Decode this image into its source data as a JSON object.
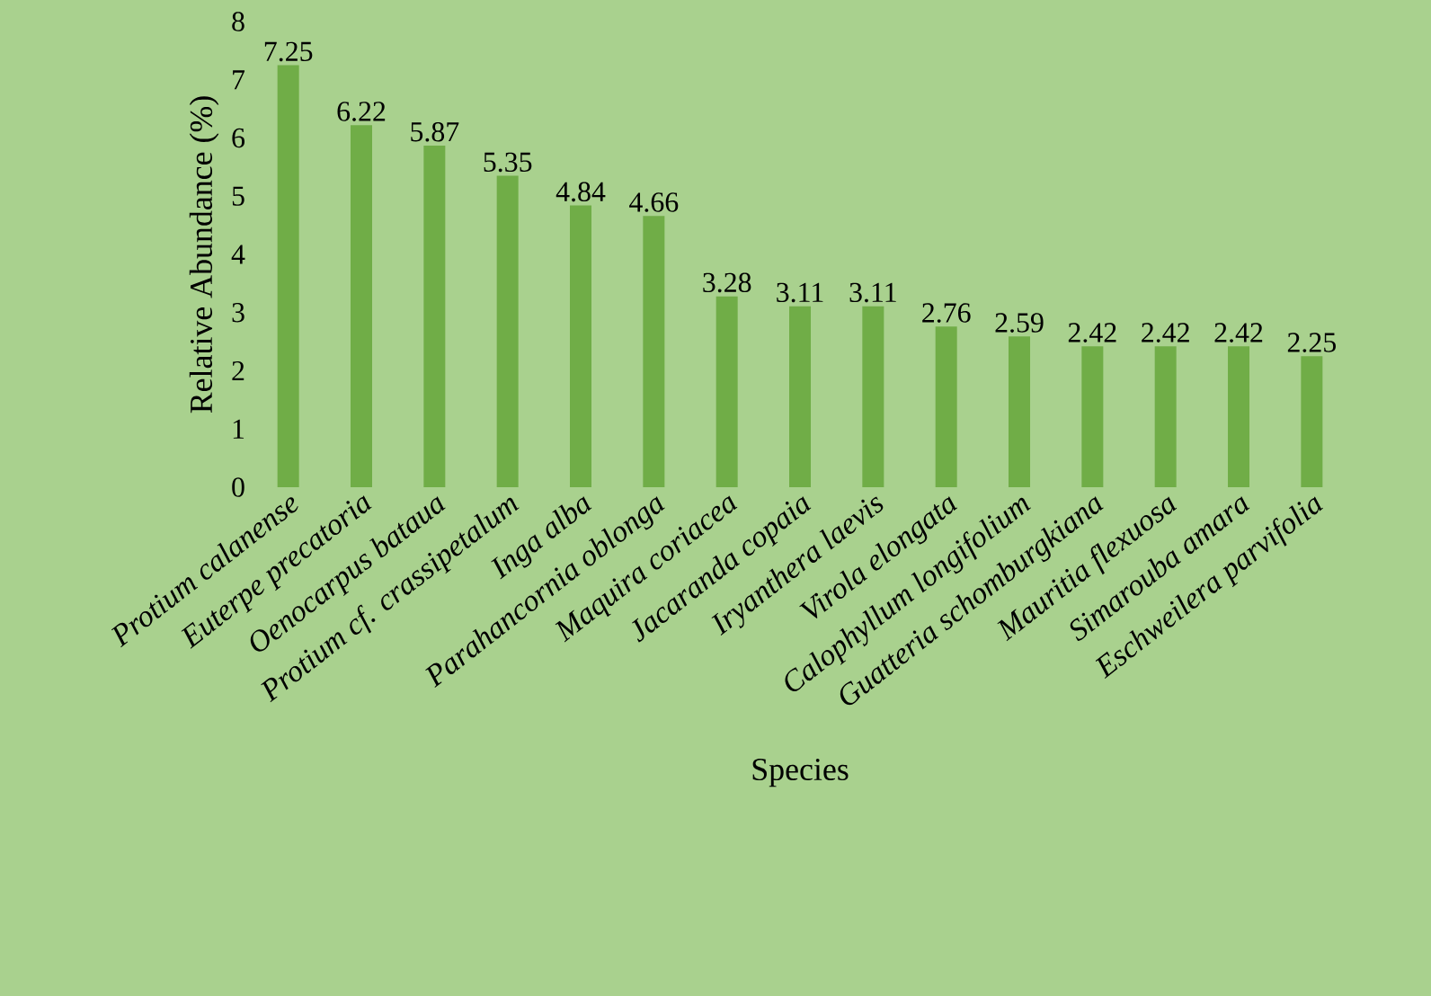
{
  "chart_data": {
    "type": "bar",
    "xlabel": "Species",
    "ylabel": "Relative Abundance (%)",
    "categories": [
      "Protium calanense",
      "Euterpe precatoria",
      "Oenocarpus bataua",
      "Protium cf. crassipetalum",
      "Inga alba",
      "Parahancornia oblonga",
      "Maquira coriacea",
      "Jacaranda copaia",
      "Iryanthera laevis",
      "Virola elongata",
      "Calophyllum longifolium",
      "Guatteria schomburgkiana",
      "Mauritia flexuosa",
      "Simarouba amara",
      "Eschweilera parvifolia"
    ],
    "values": [
      7.25,
      6.22,
      5.87,
      5.35,
      4.84,
      4.66,
      3.28,
      3.11,
      3.11,
      2.76,
      2.59,
      2.42,
      2.42,
      2.42,
      2.25
    ],
    "color": "#70ad47",
    "ylim": [
      0,
      8
    ],
    "yticks": [
      0,
      1,
      2,
      3,
      4,
      5,
      6,
      7,
      8
    ],
    "data_labels": true,
    "grid": false
  }
}
